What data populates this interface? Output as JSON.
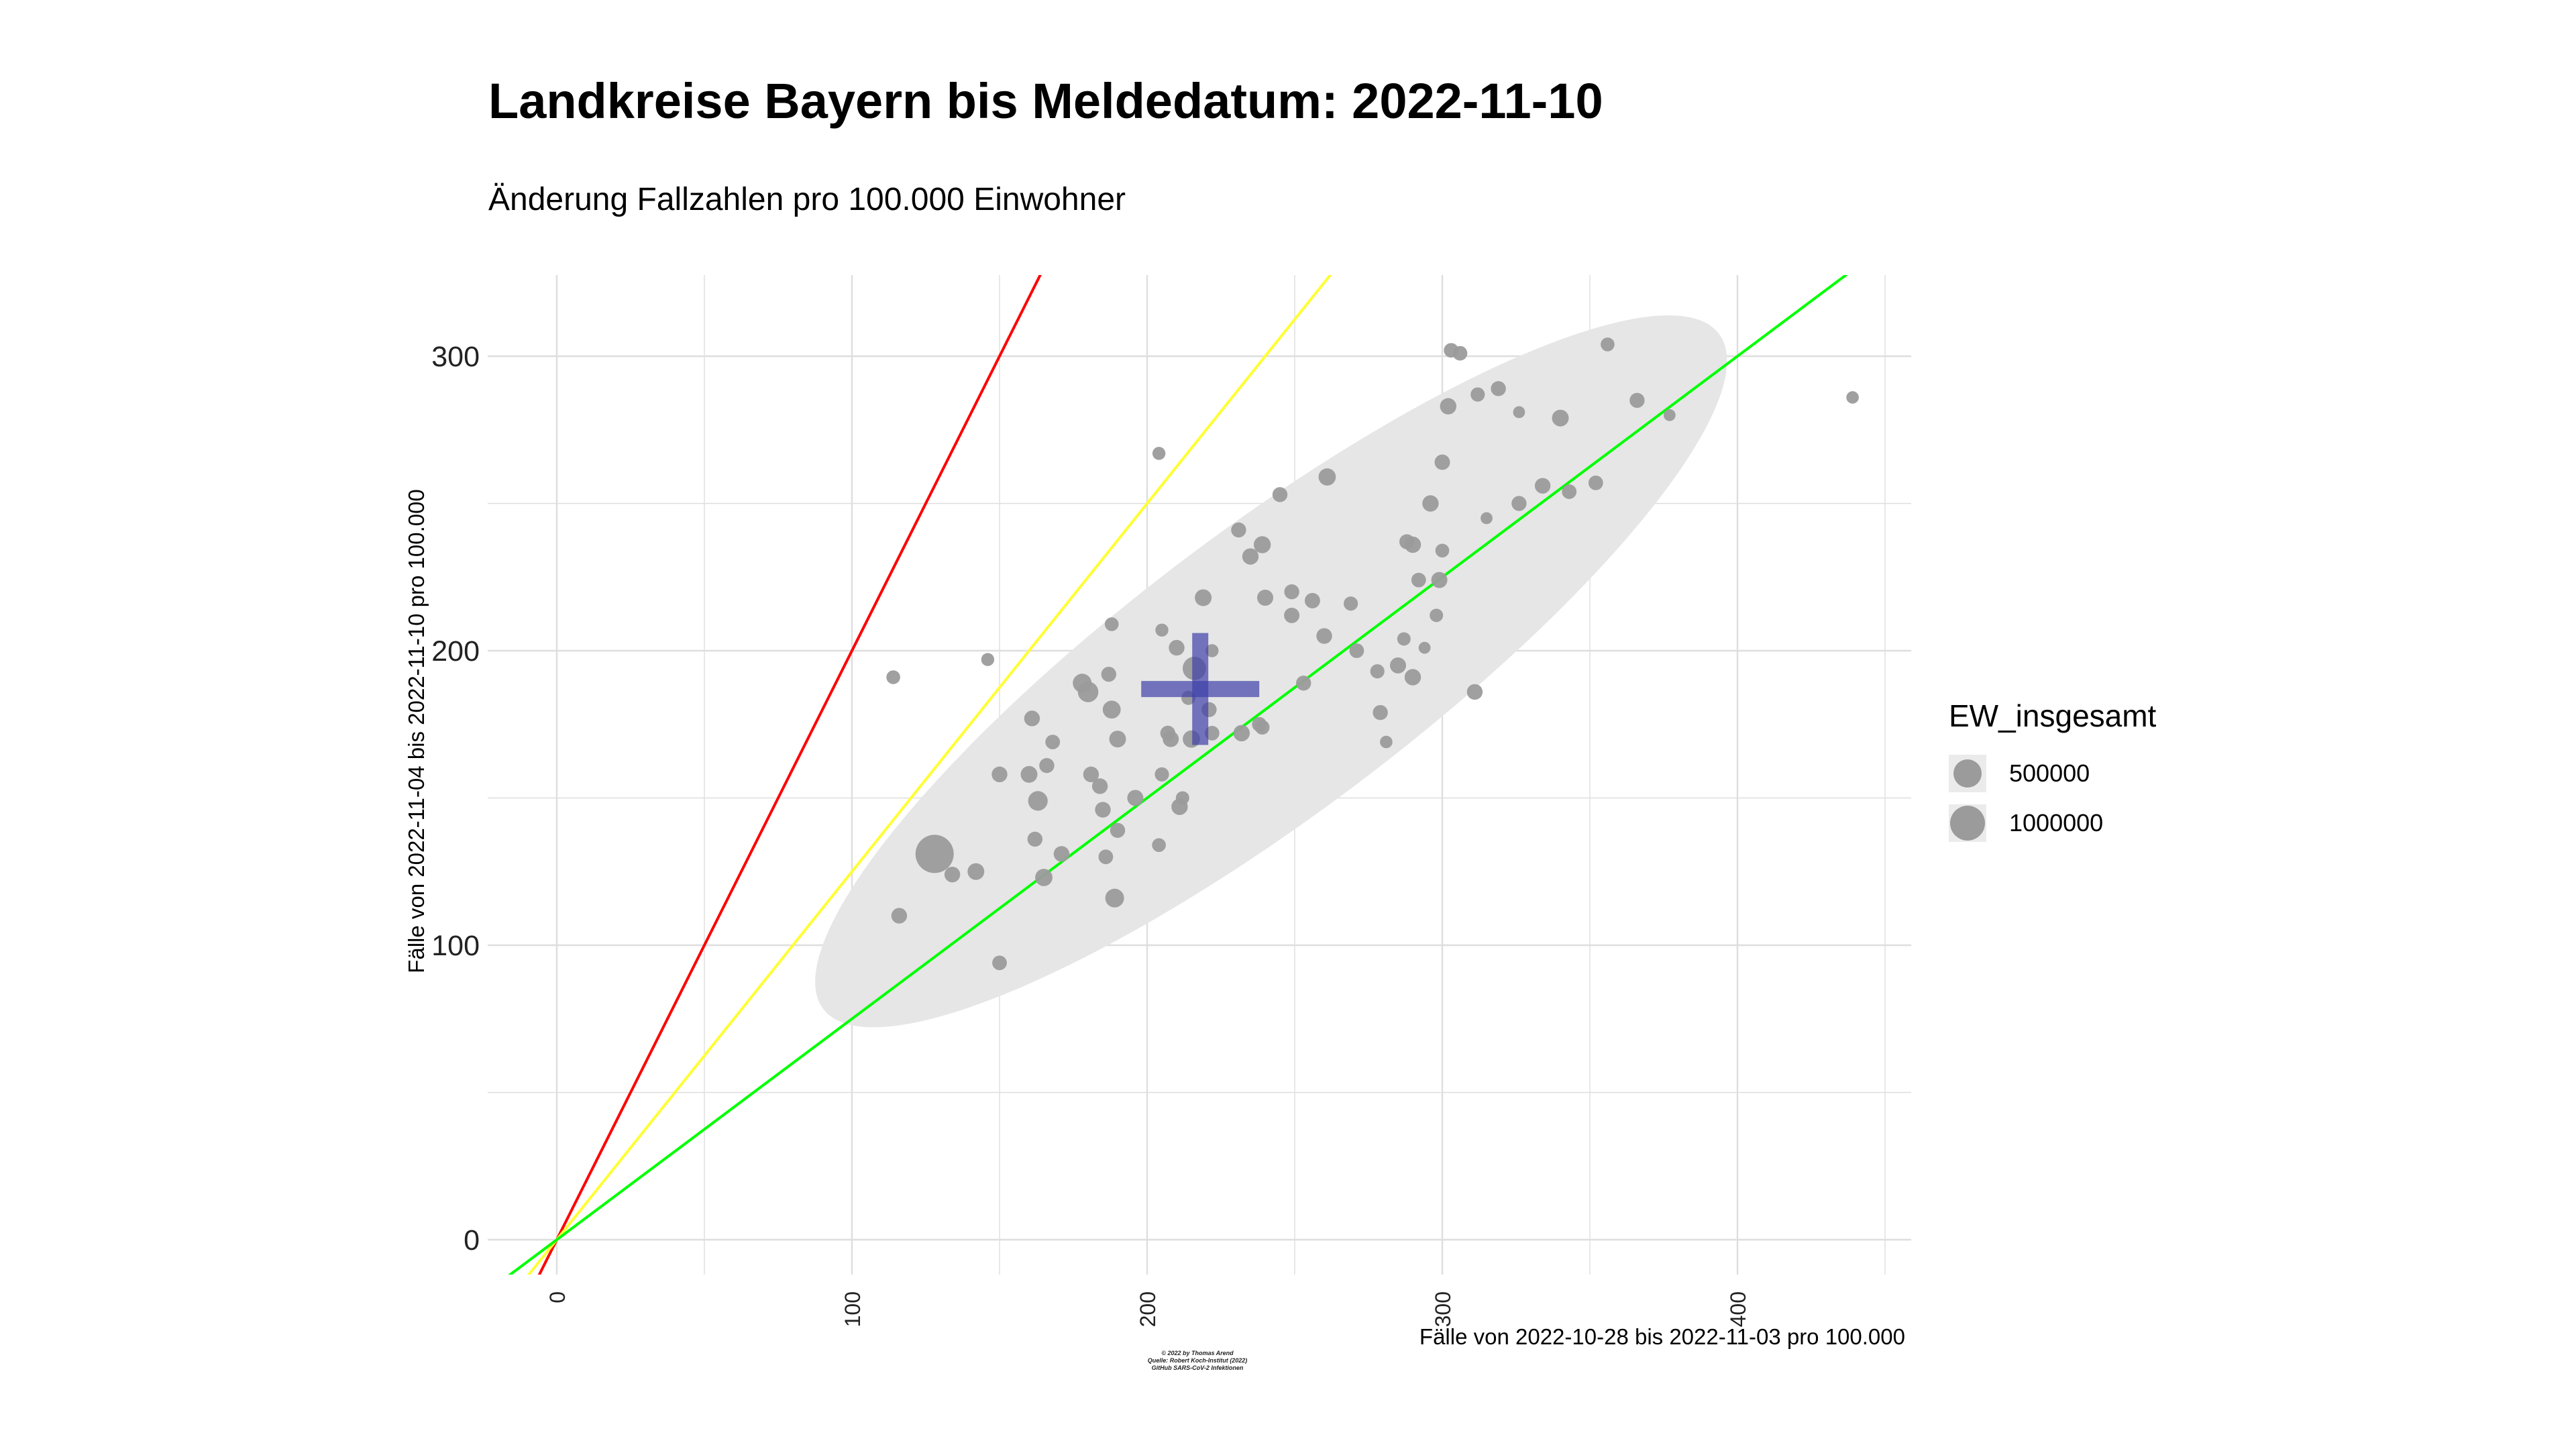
{
  "page": {
    "title": "Landkreise Bayern bis Meldedatum: 2022-11-10",
    "subtitle": "Änderung Fallzahlen pro 100.000 Einwohner",
    "caption_lines": [
      "© 2022 by Thomas Arend",
      "Quelle: Robert Koch-Institut (2022)",
      "GitHub SARS-CoV-2 Infektionen"
    ]
  },
  "legend": {
    "title": "EW_insgesamt",
    "entries": [
      {
        "label": "500000",
        "value": 500000
      },
      {
        "label": "1000000",
        "value": 1000000
      }
    ]
  },
  "colors": {
    "points": "#9b9b9b",
    "ellipse": "#e6e6e6",
    "grid": "#dedede",
    "line_red": "#ff0000",
    "line_yellow": "#ffff33",
    "line_green": "#00ff00",
    "mean_cross": "#3f40a8"
  },
  "chart_data": {
    "type": "scatter",
    "title": "Landkreise Bayern bis Meldedatum: 2022-11-10",
    "subtitle": "Änderung Fallzahlen pro 100.000 Einwohner",
    "xlabel": "Fälle von 2022-10-28 bis 2022-11-03 pro 100.000",
    "ylabel": "Fälle von 2022-11-04 bis 2022-11-10 pro 100.000",
    "xlim": [
      -20,
      462
    ],
    "ylim": [
      -15,
      325
    ],
    "x_ticks": [
      0,
      100,
      200,
      300,
      400
    ],
    "y_ticks": [
      0,
      100,
      200,
      300
    ],
    "grid": true,
    "legend_position": "right",
    "reference_lines": [
      {
        "color": "red",
        "slope": 2.0,
        "intercept": 0
      },
      {
        "color": "yellow",
        "slope": 1.25,
        "intercept": 0
      },
      {
        "color": "green",
        "slope": 0.75,
        "intercept": 0
      }
    ],
    "confidence_ellipse": {
      "center": [
        242,
        193
      ],
      "semi_axes": [
        190,
        48
      ],
      "angle_deg": 37
    },
    "mean_cross": {
      "x": 218,
      "y": 187,
      "x_range": [
        198,
        238
      ],
      "y_range": [
        168,
        206
      ]
    },
    "points": [
      {
        "x": 114,
        "y": 191,
        "pop": 100000
      },
      {
        "x": 116,
        "y": 110,
        "pop": 150000
      },
      {
        "x": 128,
        "y": 131,
        "pop": 1500000
      },
      {
        "x": 134,
        "y": 124,
        "pop": 150000
      },
      {
        "x": 142,
        "y": 125,
        "pop": 180000
      },
      {
        "x": 146,
        "y": 197,
        "pop": 80000
      },
      {
        "x": 150,
        "y": 158,
        "pop": 150000
      },
      {
        "x": 150,
        "y": 94,
        "pop": 120000
      },
      {
        "x": 160,
        "y": 158,
        "pop": 180000
      },
      {
        "x": 161,
        "y": 177,
        "pop": 150000
      },
      {
        "x": 162,
        "y": 136,
        "pop": 130000
      },
      {
        "x": 163,
        "y": 149,
        "pop": 280000
      },
      {
        "x": 165,
        "y": 123,
        "pop": 200000
      },
      {
        "x": 166,
        "y": 161,
        "pop": 130000
      },
      {
        "x": 168,
        "y": 169,
        "pop": 120000
      },
      {
        "x": 171,
        "y": 131,
        "pop": 150000
      },
      {
        "x": 178,
        "y": 189,
        "pop": 250000
      },
      {
        "x": 180,
        "y": 186,
        "pop": 320000
      },
      {
        "x": 181,
        "y": 158,
        "pop": 150000
      },
      {
        "x": 184,
        "y": 154,
        "pop": 150000
      },
      {
        "x": 185,
        "y": 146,
        "pop": 150000
      },
      {
        "x": 186,
        "y": 130,
        "pop": 120000
      },
      {
        "x": 187,
        "y": 192,
        "pop": 130000
      },
      {
        "x": 188,
        "y": 209,
        "pop": 100000
      },
      {
        "x": 188,
        "y": 180,
        "pop": 220000
      },
      {
        "x": 189,
        "y": 116,
        "pop": 250000
      },
      {
        "x": 190,
        "y": 139,
        "pop": 130000
      },
      {
        "x": 190,
        "y": 170,
        "pop": 180000
      },
      {
        "x": 196,
        "y": 150,
        "pop": 160000
      },
      {
        "x": 204,
        "y": 134,
        "pop": 100000
      },
      {
        "x": 204,
        "y": 267,
        "pop": 80000
      },
      {
        "x": 205,
        "y": 158,
        "pop": 110000
      },
      {
        "x": 205,
        "y": 207,
        "pop": 80000
      },
      {
        "x": 207,
        "y": 172,
        "pop": 130000
      },
      {
        "x": 208,
        "y": 170,
        "pop": 160000
      },
      {
        "x": 210,
        "y": 201,
        "pop": 150000
      },
      {
        "x": 211,
        "y": 147,
        "pop": 170000
      },
      {
        "x": 212,
        "y": 150,
        "pop": 90000
      },
      {
        "x": 214,
        "y": 184,
        "pop": 110000
      },
      {
        "x": 215,
        "y": 170,
        "pop": 200000
      },
      {
        "x": 216,
        "y": 194,
        "pop": 450000
      },
      {
        "x": 219,
        "y": 218,
        "pop": 180000
      },
      {
        "x": 221,
        "y": 180,
        "pop": 130000
      },
      {
        "x": 222,
        "y": 200,
        "pop": 80000
      },
      {
        "x": 222,
        "y": 172,
        "pop": 120000
      },
      {
        "x": 231,
        "y": 241,
        "pop": 130000
      },
      {
        "x": 232,
        "y": 172,
        "pop": 170000
      },
      {
        "x": 235,
        "y": 232,
        "pop": 170000
      },
      {
        "x": 238,
        "y": 175,
        "pop": 120000
      },
      {
        "x": 239,
        "y": 174,
        "pop": 120000
      },
      {
        "x": 239,
        "y": 236,
        "pop": 190000
      },
      {
        "x": 240,
        "y": 218,
        "pop": 160000
      },
      {
        "x": 245,
        "y": 253,
        "pop": 130000
      },
      {
        "x": 249,
        "y": 220,
        "pop": 130000
      },
      {
        "x": 249,
        "y": 212,
        "pop": 140000
      },
      {
        "x": 253,
        "y": 189,
        "pop": 130000
      },
      {
        "x": 256,
        "y": 217,
        "pop": 140000
      },
      {
        "x": 260,
        "y": 205,
        "pop": 150000
      },
      {
        "x": 261,
        "y": 259,
        "pop": 200000
      },
      {
        "x": 269,
        "y": 216,
        "pop": 110000
      },
      {
        "x": 271,
        "y": 200,
        "pop": 120000
      },
      {
        "x": 278,
        "y": 193,
        "pop": 110000
      },
      {
        "x": 279,
        "y": 179,
        "pop": 130000
      },
      {
        "x": 281,
        "y": 169,
        "pop": 70000
      },
      {
        "x": 285,
        "y": 195,
        "pop": 160000
      },
      {
        "x": 287,
        "y": 204,
        "pop": 90000
      },
      {
        "x": 288,
        "y": 237,
        "pop": 130000
      },
      {
        "x": 290,
        "y": 236,
        "pop": 170000
      },
      {
        "x": 290,
        "y": 191,
        "pop": 170000
      },
      {
        "x": 292,
        "y": 224,
        "pop": 120000
      },
      {
        "x": 294,
        "y": 201,
        "pop": 60000
      },
      {
        "x": 296,
        "y": 250,
        "pop": 170000
      },
      {
        "x": 298,
        "y": 212,
        "pop": 90000
      },
      {
        "x": 299,
        "y": 224,
        "pop": 160000
      },
      {
        "x": 300,
        "y": 264,
        "pop": 140000
      },
      {
        "x": 300,
        "y": 234,
        "pop": 100000
      },
      {
        "x": 302,
        "y": 283,
        "pop": 170000
      },
      {
        "x": 303,
        "y": 302,
        "pop": 120000
      },
      {
        "x": 306,
        "y": 301,
        "pop": 120000
      },
      {
        "x": 311,
        "y": 186,
        "pop": 150000
      },
      {
        "x": 312,
        "y": 287,
        "pop": 110000
      },
      {
        "x": 315,
        "y": 245,
        "pop": 60000
      },
      {
        "x": 319,
        "y": 289,
        "pop": 130000
      },
      {
        "x": 326,
        "y": 250,
        "pop": 130000
      },
      {
        "x": 326,
        "y": 281,
        "pop": 60000
      },
      {
        "x": 334,
        "y": 256,
        "pop": 150000
      },
      {
        "x": 340,
        "y": 279,
        "pop": 180000
      },
      {
        "x": 343,
        "y": 254,
        "pop": 120000
      },
      {
        "x": 352,
        "y": 257,
        "pop": 120000
      },
      {
        "x": 356,
        "y": 304,
        "pop": 100000
      },
      {
        "x": 366,
        "y": 285,
        "pop": 130000
      },
      {
        "x": 377,
        "y": 280,
        "pop": 60000
      },
      {
        "x": 439,
        "y": 286,
        "pop": 70000
      }
    ]
  }
}
